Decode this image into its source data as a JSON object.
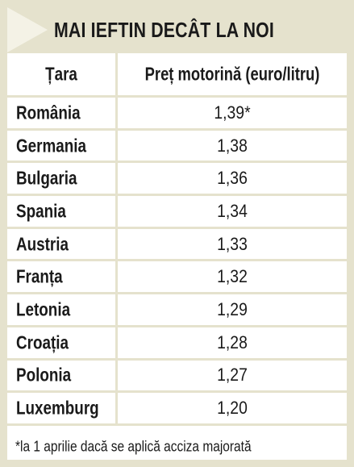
{
  "title": "MAI IEFTIN DECÂT LA NOI",
  "table": {
    "headers": {
      "country": "Țara",
      "price": "Preț motorină (euro/litru)"
    },
    "rows": [
      {
        "country": "România",
        "price": "1,39*"
      },
      {
        "country": "Germania",
        "price": "1,38"
      },
      {
        "country": "Bulgaria",
        "price": "1,36"
      },
      {
        "country": "Spania",
        "price": "1,34"
      },
      {
        "country": "Austria",
        "price": "1,33"
      },
      {
        "country": "Franța",
        "price": "1,32"
      },
      {
        "country": "Letonia",
        "price": "1,29"
      },
      {
        "country": "Croația",
        "price": "1,28"
      },
      {
        "country": "Polonia",
        "price": "1,27"
      },
      {
        "country": "Luxemburg",
        "price": "1,20"
      }
    ]
  },
  "footnote": "*la 1 aprilie dacă se aplică acciza majorată",
  "colors": {
    "background": "#ffffff",
    "border": "#e5e2cd",
    "title_arrow": "#f4f2e6",
    "text": "#1a1a1a"
  }
}
